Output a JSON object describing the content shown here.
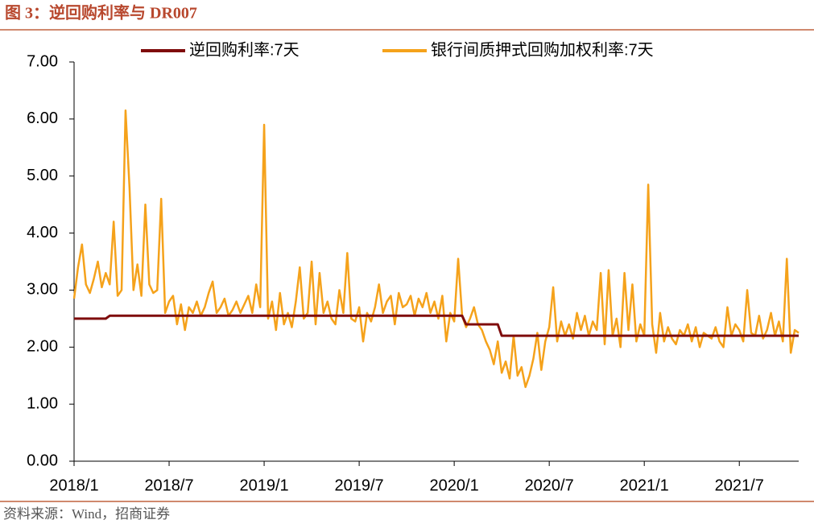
{
  "chart_data": {
    "type": "line",
    "title": "图 3：逆回购利率与 DR007",
    "source": "资料来源：Wind，招商证券",
    "categories": [
      "2018/1",
      null,
      null,
      null,
      null,
      null,
      null,
      null,
      null,
      null,
      null,
      null,
      null,
      null,
      null,
      null,
      null,
      null,
      null,
      null,
      null,
      null,
      null,
      null,
      "2018/7",
      null,
      null,
      null,
      null,
      null,
      null,
      null,
      null,
      null,
      null,
      null,
      null,
      null,
      null,
      null,
      null,
      null,
      null,
      null,
      null,
      null,
      null,
      null,
      "2019/1",
      null,
      null,
      null,
      null,
      null,
      null,
      null,
      null,
      null,
      null,
      null,
      null,
      null,
      null,
      null,
      null,
      null,
      null,
      null,
      null,
      null,
      null,
      null,
      "2019/7",
      null,
      null,
      null,
      null,
      null,
      null,
      null,
      null,
      null,
      null,
      null,
      null,
      null,
      null,
      null,
      null,
      null,
      null,
      null,
      null,
      null,
      null,
      null,
      "2020/1",
      null,
      null,
      null,
      null,
      null,
      null,
      null,
      null,
      null,
      null,
      null,
      null,
      null,
      null,
      null,
      null,
      null,
      null,
      null,
      null,
      null,
      null,
      null,
      "2020/7",
      null,
      null,
      null,
      null,
      null,
      null,
      null,
      null,
      null,
      null,
      null,
      null,
      null,
      null,
      null,
      null,
      null,
      null,
      null,
      null,
      null,
      null,
      null,
      "2021/1",
      null,
      null,
      null,
      null,
      null,
      null,
      null,
      null,
      null,
      null,
      null,
      null,
      null,
      null,
      null,
      null,
      null,
      null,
      null,
      null,
      null,
      null,
      null,
      "2021/7",
      null,
      null,
      null,
      null,
      null,
      null,
      null,
      null,
      null,
      null,
      null,
      null,
      null,
      null,
      null
    ],
    "series": [
      {
        "name": "逆回购利率:7天",
        "color": "#7f0c0c",
        "values": [
          2.5,
          2.5,
          2.5,
          2.5,
          2.5,
          2.5,
          2.5,
          2.5,
          2.5,
          2.55,
          2.55,
          2.55,
          2.55,
          2.55,
          2.55,
          2.55,
          2.55,
          2.55,
          2.55,
          2.55,
          2.55,
          2.55,
          2.55,
          2.55,
          2.55,
          2.55,
          2.55,
          2.55,
          2.55,
          2.55,
          2.55,
          2.55,
          2.55,
          2.55,
          2.55,
          2.55,
          2.55,
          2.55,
          2.55,
          2.55,
          2.55,
          2.55,
          2.55,
          2.55,
          2.55,
          2.55,
          2.55,
          2.55,
          2.55,
          2.55,
          2.55,
          2.55,
          2.55,
          2.55,
          2.55,
          2.55,
          2.55,
          2.55,
          2.55,
          2.55,
          2.55,
          2.55,
          2.55,
          2.55,
          2.55,
          2.55,
          2.55,
          2.55,
          2.55,
          2.55,
          2.55,
          2.55,
          2.55,
          2.55,
          2.55,
          2.55,
          2.55,
          2.55,
          2.55,
          2.55,
          2.55,
          2.55,
          2.55,
          2.55,
          2.55,
          2.55,
          2.55,
          2.55,
          2.55,
          2.55,
          2.55,
          2.55,
          2.55,
          2.55,
          2.55,
          2.55,
          2.55,
          2.55,
          2.55,
          2.4,
          2.4,
          2.4,
          2.4,
          2.4,
          2.4,
          2.4,
          2.4,
          2.4,
          2.2,
          2.2,
          2.2,
          2.2,
          2.2,
          2.2,
          2.2,
          2.2,
          2.2,
          2.2,
          2.2,
          2.2,
          2.2,
          2.2,
          2.2,
          2.2,
          2.2,
          2.2,
          2.2,
          2.2,
          2.2,
          2.2,
          2.2,
          2.2,
          2.2,
          2.2,
          2.2,
          2.2,
          2.2,
          2.2,
          2.2,
          2.2,
          2.2,
          2.2,
          2.2,
          2.2,
          2.2,
          2.2,
          2.2,
          2.2,
          2.2,
          2.2,
          2.2,
          2.2,
          2.2,
          2.2,
          2.2,
          2.2,
          2.2,
          2.2,
          2.2,
          2.2,
          2.2,
          2.2,
          2.2,
          2.2,
          2.2,
          2.2,
          2.2,
          2.2,
          2.2,
          2.2,
          2.2,
          2.2,
          2.2,
          2.2,
          2.2,
          2.2,
          2.2,
          2.2,
          2.2,
          2.2,
          2.2,
          2.2,
          2.2,
          2.2
        ]
      },
      {
        "name": "银行间质押式回购加权利率:7天",
        "color": "#f5a21b",
        "values": [
          2.85,
          3.4,
          3.8,
          3.1,
          2.95,
          3.2,
          3.5,
          3.05,
          3.3,
          3.1,
          4.2,
          2.9,
          3.0,
          6.15,
          4.8,
          3.0,
          3.45,
          2.9,
          4.5,
          3.1,
          2.95,
          3.0,
          4.6,
          2.6,
          2.8,
          2.9,
          2.4,
          2.75,
          2.3,
          2.7,
          2.6,
          2.8,
          2.55,
          2.7,
          2.95,
          3.15,
          2.6,
          2.7,
          2.85,
          2.55,
          2.65,
          2.8,
          2.6,
          2.75,
          2.9,
          2.6,
          3.1,
          2.7,
          5.9,
          2.5,
          2.8,
          2.3,
          2.95,
          2.4,
          2.6,
          2.35,
          2.8,
          3.4,
          2.5,
          2.6,
          3.5,
          2.4,
          3.3,
          2.6,
          2.8,
          2.5,
          2.4,
          3.0,
          2.6,
          3.65,
          2.5,
          2.45,
          2.7,
          2.1,
          2.6,
          2.45,
          2.7,
          3.1,
          2.6,
          2.8,
          2.9,
          2.4,
          2.95,
          2.7,
          2.75,
          2.9,
          2.55,
          2.85,
          2.7,
          2.95,
          2.6,
          2.8,
          2.5,
          2.9,
          2.1,
          2.6,
          2.45,
          3.55,
          2.55,
          2.35,
          2.5,
          2.7,
          2.4,
          2.3,
          2.1,
          1.95,
          1.7,
          2.1,
          1.55,
          1.75,
          1.45,
          2.2,
          1.5,
          1.65,
          1.3,
          1.5,
          1.8,
          2.25,
          1.6,
          2.1,
          2.35,
          3.05,
          2.1,
          2.45,
          2.2,
          2.4,
          2.15,
          2.6,
          2.3,
          2.55,
          2.2,
          2.45,
          2.3,
          3.3,
          2.05,
          3.35,
          2.2,
          2.5,
          2.0,
          3.3,
          2.3,
          3.1,
          2.1,
          2.4,
          2.2,
          4.85,
          2.4,
          1.9,
          2.6,
          2.1,
          2.35,
          2.15,
          2.05,
          2.3,
          2.2,
          2.4,
          2.1,
          2.35,
          2.0,
          2.25,
          2.2,
          2.15,
          2.35,
          2.1,
          2.0,
          2.7,
          2.2,
          2.4,
          2.3,
          2.1,
          3.0,
          2.25,
          2.2,
          2.55,
          2.15,
          2.3,
          2.6,
          2.2,
          2.45,
          2.1,
          3.55,
          1.9,
          2.3,
          2.25
        ]
      }
    ],
    "ylim": [
      0,
      7
    ],
    "yticks": [
      {
        "value": 0,
        "label": "0.00"
      },
      {
        "value": 1,
        "label": "1.00"
      },
      {
        "value": 2,
        "label": "2.00"
      },
      {
        "value": 3,
        "label": "3.00"
      },
      {
        "value": 4,
        "label": "4.00"
      },
      {
        "value": 5,
        "label": "5.00"
      },
      {
        "value": 6,
        "label": "6.00"
      },
      {
        "value": 7,
        "label": "7.00"
      }
    ],
    "grid": false,
    "legend": "top"
  }
}
